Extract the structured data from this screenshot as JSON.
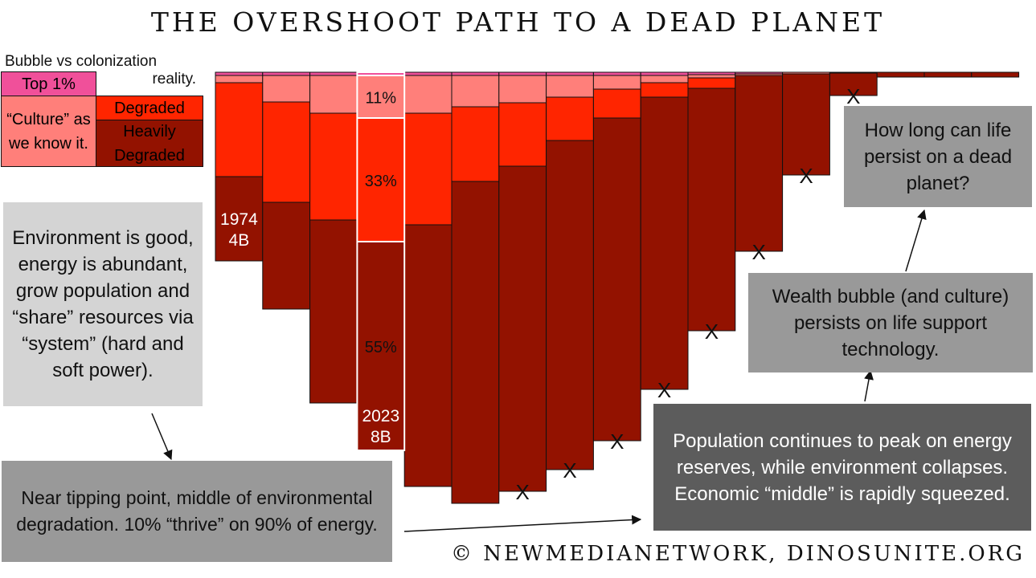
{
  "title": "THE OVERSHOOT PATH TO A DEAD PLANET",
  "footer": "© NEWMEDIANETWORK, DINOSUNITE.ORG",
  "legend": {
    "title_line1": "Bubble vs colonization",
    "title_line2": "reality.",
    "top1": "Top 1%",
    "culture": "“Culture” as we know it.",
    "degraded": "Degraded",
    "heavily": "Heavily Degraded"
  },
  "colors": {
    "top1": "#f0509a",
    "culture": "#ff7f7a",
    "degraded": "#ff2500",
    "heavily": "#931200",
    "grey_light": "#d4d4d4",
    "grey_mid": "#999999",
    "grey_dark": "#5c5c5c"
  },
  "chart_data": {
    "type": "bar",
    "stacked": true,
    "orientation": "downward",
    "series": [
      {
        "name": "Top 1%"
      },
      {
        "name": "“Culture” as we know it."
      },
      {
        "name": "Degraded"
      },
      {
        "name": "Heavily Degraded"
      }
    ],
    "bars": [
      {
        "segments": [
          4,
          9,
          117,
          105
        ],
        "label1": "1974",
        "label2": "4B"
      },
      {
        "segments": [
          4,
          33,
          125,
          133
        ]
      },
      {
        "segments": [
          4,
          47,
          133,
          228
        ]
      },
      {
        "segments": [
          4,
          53,
          154,
          260
        ],
        "pct": [
          "11%",
          "33%",
          "55%"
        ],
        "label1": "2023",
        "label2": "8B",
        "highlight": true
      },
      {
        "segments": [
          4,
          47,
          139,
          326
        ]
      },
      {
        "segments": [
          4,
          39,
          93,
          401
        ]
      },
      {
        "segments": [
          4,
          34,
          79,
          405
        ],
        "x": true
      },
      {
        "segments": [
          4,
          27,
          54,
          410
        ],
        "x": true
      },
      {
        "segments": [
          4,
          17,
          36,
          402
        ],
        "x": true
      },
      {
        "segments": [
          4,
          9,
          18,
          364
        ],
        "x": true
      },
      {
        "segments": [
          3,
          4,
          13,
          302
        ],
        "x": true
      },
      {
        "segments": [
          2,
          2,
          0,
          219
        ],
        "x": true
      },
      {
        "segments": [
          0,
          2,
          0,
          126
        ],
        "x": true
      },
      {
        "segments": [
          0,
          1,
          0,
          28
        ],
        "x": true
      },
      {
        "segments": [
          0,
          0,
          0,
          6
        ]
      },
      {
        "segments": [
          0,
          0,
          0,
          6
        ]
      },
      {
        "segments": [
          0,
          0,
          0,
          6
        ]
      }
    ],
    "x_label": "X"
  },
  "boxes": {
    "env_good": "Environment is good, energy is abundant, grow population and “share” resources via “system” (hard and soft power).",
    "tipping": "Near tipping point, middle of environmental degradation. 10% “thrive” on 90% of energy.",
    "population": "Population continues to peak on energy reserves, while environment collapses. Economic “middle” is rapidly squeezed.",
    "wealth": "Wealth bubble (and culture) persists on life support technology.",
    "how_long": "How long can life persist on a dead planet?"
  }
}
